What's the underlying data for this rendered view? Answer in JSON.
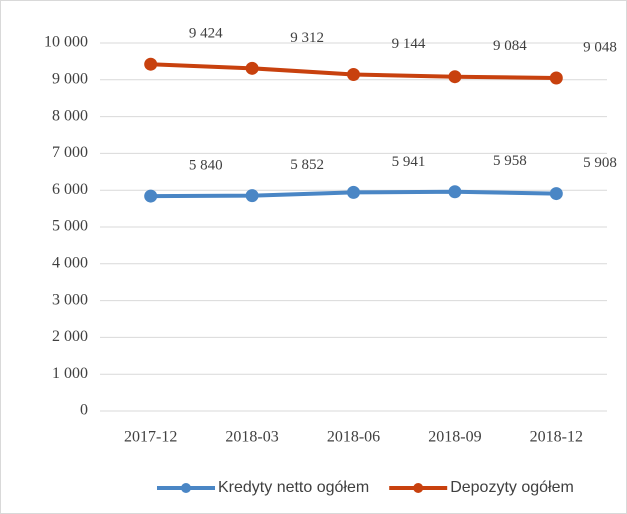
{
  "chart_data": {
    "type": "line",
    "categories": [
      "2017-12",
      "2018-03",
      "2018-06",
      "2018-09",
      "2018-12"
    ],
    "series": [
      {
        "name": "Kredyty netto ogółem",
        "color": "#4a86c5",
        "values": [
          5840,
          5852,
          5941,
          5958,
          5908
        ],
        "value_labels": [
          "5 840",
          "5 852",
          "5 941",
          "5 958",
          "5 908"
        ]
      },
      {
        "name": "Depozyty ogółem",
        "color": "#c8410e",
        "values": [
          9424,
          9312,
          9144,
          9084,
          9048
        ],
        "value_labels": [
          "9 424",
          "9 312",
          "9 144",
          "9 084",
          "9 048"
        ]
      }
    ],
    "ylim": [
      0,
      10000
    ],
    "yticks": [
      0,
      {
        "value": 1000,
        "label": "1 000"
      },
      {
        "value": 2000,
        "label": "2 000"
      },
      {
        "value": 3000,
        "label": "3 000"
      },
      {
        "value": 4000,
        "label": "4 000"
      },
      {
        "value": 5000,
        "label": "5 000"
      },
      {
        "value": 6000,
        "label": "6 000"
      },
      {
        "value": 7000,
        "label": "7 000"
      },
      {
        "value": 8000,
        "label": "8 000"
      },
      {
        "value": 9000,
        "label": "9 000"
      },
      {
        "value": 10000,
        "label": "10 000"
      }
    ],
    "grid": true,
    "legend": "bottom"
  }
}
